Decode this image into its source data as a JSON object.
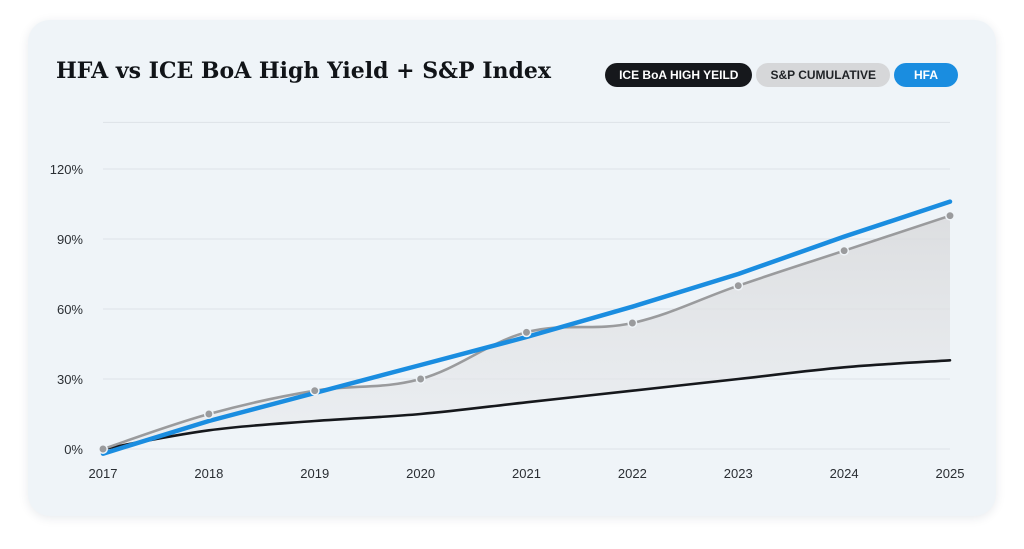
{
  "title": "HFA vs ICE BoA High Yield + S&P Index",
  "legend": [
    {
      "label": "ICE BoA HIGH YEILD",
      "color": "#16181c"
    },
    {
      "label": "S&P CUMULATIVE",
      "color": "#d6d7d9"
    },
    {
      "label": "HFA",
      "color": "#1a8de0"
    }
  ],
  "chart_data": {
    "type": "line",
    "title": "HFA vs ICE BoA High Yield + S&P Index",
    "xlabel": "",
    "ylabel": "",
    "x": [
      "2017",
      "2018",
      "2019",
      "2020",
      "2021",
      "2022",
      "2023",
      "2024",
      "2025"
    ],
    "y_ticks": [
      "0%",
      "30%",
      "60%",
      "90%",
      "120%"
    ],
    "ylim": [
      0,
      140
    ],
    "grid": true,
    "legend_position": "top-right",
    "series": [
      {
        "name": "ICE BoA HIGH YEILD",
        "color": "#16181c",
        "values": [
          0,
          8,
          12,
          15,
          20,
          25,
          30,
          35,
          38
        ]
      },
      {
        "name": "S&P CUMULATIVE",
        "color": "#9a9b9d",
        "values": [
          0,
          15,
          25,
          30,
          50,
          54,
          70,
          85,
          100
        ]
      },
      {
        "name": "HFA",
        "color": "#1a8de0",
        "values": [
          -2,
          12,
          24,
          36,
          48,
          61,
          75,
          91,
          106
        ]
      }
    ]
  }
}
